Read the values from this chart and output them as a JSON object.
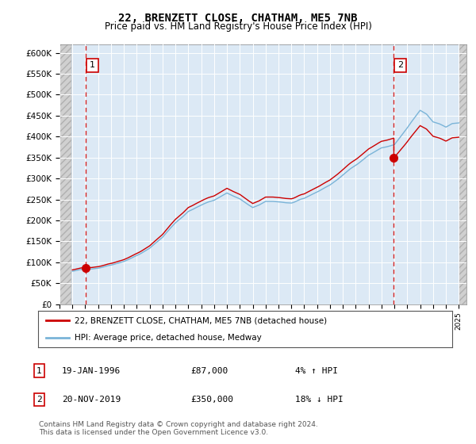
{
  "title": "22, BRENZETT CLOSE, CHATHAM, ME5 7NB",
  "subtitle": "Price paid vs. HM Land Registry's House Price Index (HPI)",
  "ylim": [
    0,
    620000
  ],
  "yticks": [
    0,
    50000,
    100000,
    150000,
    200000,
    250000,
    300000,
    350000,
    400000,
    450000,
    500000,
    550000,
    600000
  ],
  "ytick_labels": [
    "£0",
    "£50K",
    "£100K",
    "£150K",
    "£200K",
    "£250K",
    "£300K",
    "£350K",
    "£400K",
    "£450K",
    "£500K",
    "£550K",
    "£600K"
  ],
  "hpi_color": "#7ab4d8",
  "price_color": "#cc0000",
  "marker_color": "#cc0000",
  "vline_color": "#cc0000",
  "legend_label_price": "22, BRENZETT CLOSE, CHATHAM, ME5 7NB (detached house)",
  "legend_label_hpi": "HPI: Average price, detached house, Medway",
  "annotation1_label": "1",
  "annotation1_date": "19-JAN-1996",
  "annotation1_price": "£87,000",
  "annotation1_pct": "4% ↑ HPI",
  "annotation2_label": "2",
  "annotation2_date": "20-NOV-2019",
  "annotation2_price": "£350,000",
  "annotation2_pct": "18% ↓ HPI",
  "footer": "Contains HM Land Registry data © Crown copyright and database right 2024.\nThis data is licensed under the Open Government Licence v3.0.",
  "sale1_year": 1996.05,
  "sale1_value": 87000,
  "sale2_year": 2019.92,
  "sale2_value": 350000,
  "background_plot": "#dce9f5",
  "hatch_color": "#c8c8c8"
}
